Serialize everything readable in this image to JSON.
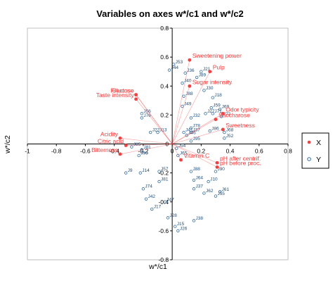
{
  "chart_data": {
    "type": "scatter",
    "title": "Variables on axes w*/c1 and w*/c2",
    "xlabel": "w*/c1",
    "ylabel": "w*/c2",
    "xlim": [
      -1,
      0.8
    ],
    "ylim": [
      -0.8,
      0.8
    ],
    "xticks": [
      "-1",
      "-0.8",
      "-0.6",
      "-0.4",
      "-0.2",
      "0",
      "0.2",
      "0.4",
      "0.6",
      "0.8"
    ],
    "yticks": [
      "-0.8",
      "-0.6",
      "-0.4",
      "-0.2",
      "0",
      "0.2",
      "0.4",
      "0.6",
      "0.8"
    ],
    "legend": {
      "position": "right",
      "entries": [
        "X",
        "Y"
      ]
    },
    "colors": {
      "X": "#ff3b3b",
      "Y": "#2e6fa7"
    },
    "series": [
      {
        "name": "X",
        "points": [
          {
            "label": "Sweetening power",
            "x": 0.12,
            "y": 0.58
          },
          {
            "label": "Pulp",
            "x": 0.26,
            "y": 0.5
          },
          {
            "label": "Sugar intensity",
            "x": 0.12,
            "y": 0.4
          },
          {
            "label": "Fructose",
            "x": -0.25,
            "y": 0.34
          },
          {
            "label": "Glucose",
            "x": -0.25,
            "y": 0.34
          },
          {
            "label": "Taste intensity",
            "x": -0.25,
            "y": 0.31
          },
          {
            "label": "Odor typicity",
            "x": 0.35,
            "y": 0.21
          },
          {
            "label": "Saccharose",
            "x": 0.3,
            "y": 0.17
          },
          {
            "label": "Sweetness",
            "x": 0.35,
            "y": 0.1
          },
          {
            "label": "Acidity",
            "x": -0.36,
            "y": 0.04
          },
          {
            "label": "Citric acid",
            "x": -0.32,
            "y": -0.01
          },
          {
            "label": "Bitterness",
            "x": -0.36,
            "y": -0.07
          },
          {
            "label": "Vitamin C",
            "x": 0.06,
            "y": -0.11
          },
          {
            "label": "pH after centrif.",
            "x": 0.31,
            "y": -0.13
          },
          {
            "label": "pH before proc.",
            "x": 0.31,
            "y": -0.16
          }
        ]
      },
      {
        "name": "Y",
        "points": [
          {
            "label": "J53",
            "x": 0.01,
            "y": 0.55
          },
          {
            "label": "J44",
            "x": -0.02,
            "y": 0.51
          },
          {
            "label": "J36",
            "x": 0.09,
            "y": 0.49
          },
          {
            "label": "J21",
            "x": 0.2,
            "y": 0.5
          },
          {
            "label": "J89",
            "x": 0.17,
            "y": 0.46
          },
          {
            "label": "J40",
            "x": 0.07,
            "y": 0.42
          },
          {
            "label": "J30",
            "x": 0.22,
            "y": 0.37
          },
          {
            "label": "J18",
            "x": 0.28,
            "y": 0.32
          },
          {
            "label": "J88",
            "x": 0.08,
            "y": 0.33
          },
          {
            "label": "J49",
            "x": 0.07,
            "y": 0.26
          },
          {
            "label": "J69",
            "x": 0.33,
            "y": 0.24
          },
          {
            "label": "J59",
            "x": 0.27,
            "y": 0.25
          },
          {
            "label": "J27",
            "x": 0.23,
            "y": 0.21
          },
          {
            "label": "J71",
            "x": 0.28,
            "y": 0.21
          },
          {
            "label": "J72",
            "x": 0.34,
            "y": 0.19
          },
          {
            "label": "J32",
            "x": 0.13,
            "y": 0.18
          },
          {
            "label": "J56",
            "x": -0.21,
            "y": 0.21
          },
          {
            "label": "J76",
            "x": -0.21,
            "y": 0.18
          },
          {
            "label": "J78",
            "x": 0.13,
            "y": 0.11
          },
          {
            "label": "J41",
            "x": 0.08,
            "y": 0.08
          },
          {
            "label": "J37",
            "x": 0.13,
            "y": 0.08
          },
          {
            "label": "J86",
            "x": 0.26,
            "y": 0.09
          },
          {
            "label": "J22",
            "x": -0.15,
            "y": 0.08
          },
          {
            "label": "J13",
            "x": -0.1,
            "y": 0.08
          },
          {
            "label": "J46",
            "x": 0.1,
            "y": 0.06
          },
          {
            "label": "J68",
            "x": 0.36,
            "y": 0.08
          },
          {
            "label": "J52",
            "x": 0.36,
            "y": 0.04
          },
          {
            "label": "J95",
            "x": 0.13,
            "y": 0.02
          },
          {
            "label": "J85",
            "x": -0.28,
            "y": -0.02
          },
          {
            "label": "J81",
            "x": -0.21,
            "y": -0.04
          },
          {
            "label": "J93",
            "x": -0.23,
            "y": -0.08
          },
          {
            "label": "J54",
            "x": 0.03,
            "y": -0.03
          },
          {
            "label": "J65",
            "x": 0.04,
            "y": -0.08
          },
          {
            "label": "J57",
            "x": -0.09,
            "y": -0.19
          },
          {
            "label": "J14",
            "x": -0.22,
            "y": -0.2
          },
          {
            "label": "J88",
            "x": 0.13,
            "y": -0.19
          },
          {
            "label": "J90",
            "x": 0.3,
            "y": -0.19
          },
          {
            "label": "J9",
            "x": -0.32,
            "y": -0.2
          },
          {
            "label": "J81",
            "x": -0.09,
            "y": -0.26
          },
          {
            "label": "J64",
            "x": 0.15,
            "y": -0.25
          },
          {
            "label": "J10",
            "x": 0.25,
            "y": -0.26
          },
          {
            "label": "J74",
            "x": -0.2,
            "y": -0.31
          },
          {
            "label": "J37",
            "x": 0.15,
            "y": -0.31
          },
          {
            "label": "J62",
            "x": 0.22,
            "y": -0.34
          },
          {
            "label": "J61",
            "x": 0.33,
            "y": -0.33
          },
          {
            "label": "J55",
            "x": 0.3,
            "y": -0.36
          },
          {
            "label": "J42",
            "x": -0.18,
            "y": -0.38
          },
          {
            "label": "J47",
            "x": -0.05,
            "y": -0.4
          },
          {
            "label": "J17",
            "x": -0.14,
            "y": -0.45
          },
          {
            "label": "J28",
            "x": -0.03,
            "y": -0.51
          },
          {
            "label": "J38",
            "x": 0.15,
            "y": -0.53
          },
          {
            "label": "J15",
            "x": 0.02,
            "y": -0.57
          },
          {
            "label": "J26",
            "x": 0.04,
            "y": -0.6
          }
        ]
      }
    ]
  }
}
